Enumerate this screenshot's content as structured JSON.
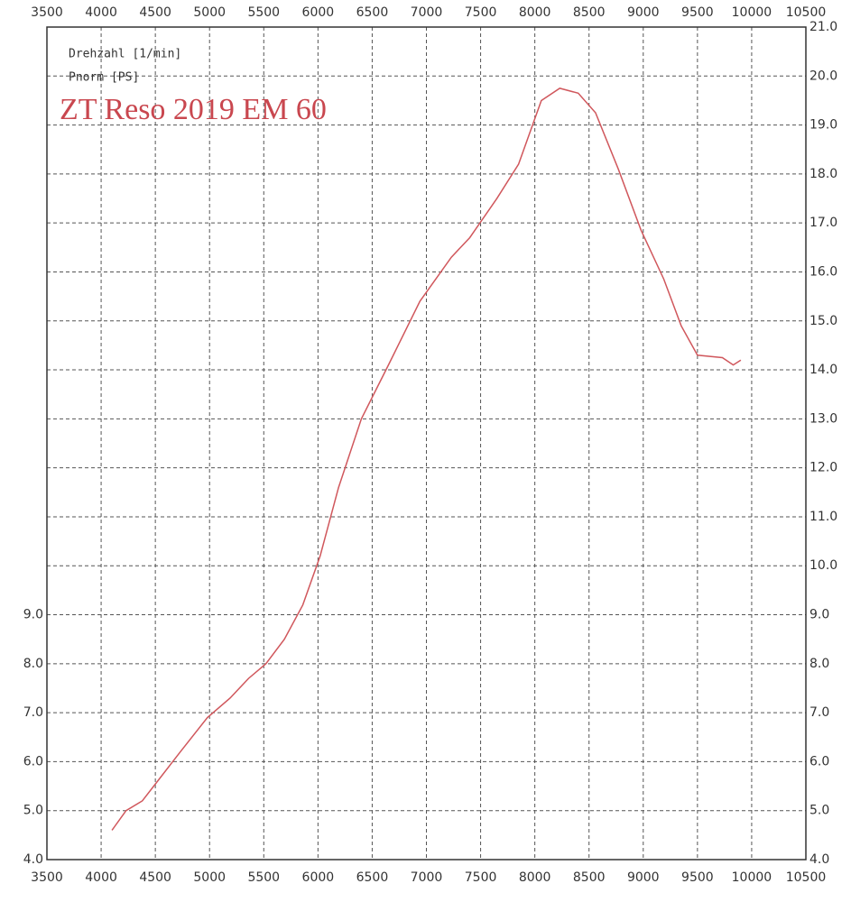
{
  "chart_data": {
    "type": "line",
    "legend_items": [
      "Drehzahl [1/min]",
      "Pnorm [PS]"
    ],
    "annotation": "ZT Reso 2019 EM 60",
    "x": [
      4100,
      4230,
      4380,
      4520,
      4730,
      4980,
      5190,
      5360,
      5520,
      5690,
      5860,
      6020,
      6190,
      6400,
      6650,
      6940,
      7230,
      7400,
      7650,
      7850,
      8060,
      8230,
      8400,
      8560,
      8770,
      8980,
      9190,
      9350,
      9500,
      9730,
      9830,
      9900
    ],
    "series": [
      {
        "color": "#d0575c",
        "values": [
          4.6,
          5.0,
          5.2,
          5.6,
          6.2,
          6.9,
          7.3,
          7.7,
          8.0,
          8.5,
          9.2,
          10.2,
          11.6,
          13.0,
          14.1,
          15.4,
          16.3,
          16.7,
          17.5,
          18.2,
          19.5,
          19.75,
          19.65,
          19.25,
          18.1,
          16.85,
          15.85,
          14.9,
          14.3,
          14.25,
          14.1,
          14.2
        ]
      }
    ],
    "xlim": [
      3500,
      10500
    ],
    "xticks": [
      3500,
      4000,
      4500,
      5000,
      5500,
      6000,
      6500,
      7000,
      7500,
      8000,
      8500,
      9000,
      9500,
      10000,
      10500
    ],
    "ylim": [
      4,
      21
    ],
    "yticks": [
      {
        "value": 4,
        "label": "4.0"
      },
      {
        "value": 5,
        "label": "5.0"
      },
      {
        "value": 6,
        "label": "6.0"
      },
      {
        "value": 7,
        "label": "7.0"
      },
      {
        "value": 8,
        "label": "8.0"
      },
      {
        "value": 9,
        "label": "9.0"
      }
    ],
    "y2lim": [
      4,
      21
    ],
    "y2ticks": [
      {
        "value": 4,
        "label": "4.0"
      },
      {
        "value": 5,
        "label": "5.0"
      },
      {
        "value": 6,
        "label": "6.0"
      },
      {
        "value": 7,
        "label": "7.0"
      },
      {
        "value": 8,
        "label": "8.0"
      },
      {
        "value": 9,
        "label": "9.0"
      },
      {
        "value": 10,
        "label": "10.0"
      },
      {
        "value": 11,
        "label": "11.0"
      },
      {
        "value": 12,
        "label": "12.0"
      },
      {
        "value": 13,
        "label": "13.0"
      },
      {
        "value": 14,
        "label": "14.0"
      },
      {
        "value": 15,
        "label": "15.0"
      },
      {
        "value": 16,
        "label": "16.0"
      },
      {
        "value": 17,
        "label": "17.0"
      },
      {
        "value": 18,
        "label": "18.0"
      },
      {
        "value": 19,
        "label": "19.0"
      },
      {
        "value": 20,
        "label": "20.0"
      },
      {
        "value": 21,
        "label": "21.0"
      }
    ],
    "grid": true
  }
}
